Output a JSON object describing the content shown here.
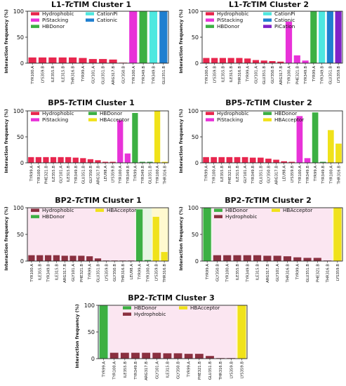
{
  "colors": {
    "Hydrophobic": "#e8264e",
    "PiStacking": "#e832d8",
    "HBDonor": "#3cb043",
    "CationPi": "#4ee8e0",
    "Cationic": "#1f7fd0",
    "PiCation": "#7f22c8",
    "HBAcceptor": "#f0e21a",
    "HydrophobicBP2": "#8a3040"
  },
  "chart_data": [
    {
      "type": "bar",
      "title": "L1-TcTIM  Cluster 1",
      "title_prefix": "L1-",
      "title_italic": "Tc",
      "title_suffix": "TIM  Cluster 1",
      "ylabel": "Interaction frequency (%)",
      "ylim": [
        0,
        100
      ],
      "yticks": [
        "0",
        "50",
        "100"
      ],
      "legend": [
        "Hydrophobic",
        "PiStacking",
        "HBDonor",
        "CationPi",
        "Cationic"
      ],
      "categories": [
        "TYR100.A",
        "LYS359.B",
        "ILE355.B",
        "ILE315.B",
        "THR316.B",
        "TYR99.A",
        "GLY101.A",
        "GLU351.B",
        "ARG317.B",
        "GLY350.B",
        "TYR100.A",
        "TYR349.B",
        "TYR349.B",
        "GLU351.B"
      ],
      "values": [
        11,
        11,
        11,
        11,
        11,
        10,
        8,
        8,
        7,
        1,
        100,
        100,
        100,
        100
      ],
      "bar_types": [
        "Hydrophobic",
        "Hydrophobic",
        "Hydrophobic",
        "Hydrophobic",
        "Hydrophobic",
        "Hydrophobic",
        "Hydrophobic",
        "Hydrophobic",
        "Hydrophobic",
        "Hydrophobic",
        "PiStacking",
        "HBDonor",
        "CationPi",
        "Cationic"
      ]
    },
    {
      "type": "bar",
      "title": "L1-TcTIM  Cluster 2",
      "title_prefix": "L1-",
      "title_italic": "Tc",
      "title_suffix": "TIM  Cluster 2",
      "ylabel": "Interaction frequency (%)",
      "ylim": [
        0,
        100
      ],
      "yticks": [
        "0",
        "50",
        "100"
      ],
      "legend": [
        "Hydrophobic",
        "PiStacking",
        "HBDonor",
        "CationPi",
        "Cationic",
        "PiCation"
      ],
      "categories": [
        "TYR100.A",
        "LYS359.B",
        "ILE355.B",
        "ILE315.B",
        "THR316.B",
        "TYR99.A",
        "GLY101.A",
        "GLU351.B",
        "GLY350.B",
        "ARG317.B",
        "TYR100.A",
        "PHE321.B",
        "TYR349.B",
        "TYR99.A",
        "TYR349.B",
        "GLU351.B",
        "LYS359.B"
      ],
      "values": [
        10,
        10,
        10,
        10,
        10,
        9,
        6,
        5,
        4,
        3,
        80,
        15,
        5,
        100,
        100,
        100,
        100
      ],
      "bar_types": [
        "Hydrophobic",
        "Hydrophobic",
        "Hydrophobic",
        "Hydrophobic",
        "Hydrophobic",
        "Hydrophobic",
        "Hydrophobic",
        "Hydrophobic",
        "Hydrophobic",
        "Hydrophobic",
        "PiStacking",
        "PiStacking",
        "PiStacking",
        "HBDonor",
        "CationPi",
        "Cationic",
        "PiCation"
      ]
    },
    {
      "type": "bar",
      "title": "BP5-TcTIM  Cluster 1",
      "title_prefix": "BP5-",
      "title_italic": "Tc",
      "title_suffix": "TIM  Cluster 1",
      "ylabel": "Interaction frequency (%)",
      "ylim": [
        0,
        100
      ],
      "yticks": [
        "0",
        "50",
        "100"
      ],
      "legend": [
        "Hydrophobic",
        "PiStacking",
        "HBDonor",
        "HBAcceptor"
      ],
      "categories": [
        "TYR99.A",
        "TYR100.A",
        "PHE321.B",
        "ILE355.B",
        "GLY101.A",
        "ILE315.B",
        "TYR349.B",
        "GLU351.B",
        "GLY350.B",
        "ARG317.B",
        "LEU98.A",
        "LYS359.B",
        "TYR100.A",
        "TYR349.B",
        "TYR99.A",
        "TYR349.B",
        "GLU351.B",
        "TYR100.A",
        "THR316.B"
      ],
      "values": [
        11,
        11,
        11,
        11,
        11,
        11,
        10,
        9,
        7,
        5,
        2,
        2,
        82,
        18,
        96,
        2,
        2,
        100,
        2
      ],
      "bar_types": [
        "Hydrophobic",
        "Hydrophobic",
        "Hydrophobic",
        "Hydrophobic",
        "Hydrophobic",
        "Hydrophobic",
        "Hydrophobic",
        "Hydrophobic",
        "Hydrophobic",
        "Hydrophobic",
        "Hydrophobic",
        "Hydrophobic",
        "PiStacking",
        "PiStacking",
        "HBDonor",
        "HBDonor",
        "HBDonor",
        "HBAcceptor",
        "HBAcceptor"
      ]
    },
    {
      "type": "bar",
      "title": "BP5-TcTIM  Cluster 2",
      "title_prefix": "BP5-",
      "title_italic": "Tc",
      "title_suffix": "TIM  Cluster 2",
      "ylabel": "Interaction frequency (%)",
      "ylim": [
        0,
        100
      ],
      "yticks": [
        "0",
        "50",
        "100"
      ],
      "legend": [
        "Hydrophobic",
        "PiStacking",
        "HBDonor",
        "HBAcceptor"
      ],
      "categories": [
        "TYR99.A",
        "TYR100.A",
        "ILE355.B",
        "PHE321.B",
        "ILE315.B",
        "GLY101.A",
        "TYR349.B",
        "GLU351.B",
        "GLY350.B",
        "ARG317.B",
        "LEU98.A",
        "LYS359.B",
        "TYR100.A",
        "TYR349.B",
        "TYR99.A",
        "TYR349.B",
        "TYR100.A",
        "THR316.B"
      ],
      "values": [
        11,
        11,
        11,
        11,
        11,
        11,
        10,
        10,
        8,
        6,
        3,
        2,
        90,
        9,
        97,
        2,
        63,
        37
      ],
      "bar_types": [
        "Hydrophobic",
        "Hydrophobic",
        "Hydrophobic",
        "Hydrophobic",
        "Hydrophobic",
        "Hydrophobic",
        "Hydrophobic",
        "Hydrophobic",
        "Hydrophobic",
        "Hydrophobic",
        "Hydrophobic",
        "Hydrophobic",
        "PiStacking",
        "PiStacking",
        "HBDonor",
        "HBDonor",
        "HBAcceptor",
        "HBAcceptor"
      ]
    },
    {
      "type": "bar",
      "title": "BP2-TcTIM  Cluster 1",
      "title_prefix": "BP2-",
      "title_italic": "Tc",
      "title_suffix": "TIM  Cluster 1",
      "ylabel": "Interaction frequency (%)",
      "ylim": [
        0,
        100
      ],
      "yticks": [
        "0",
        "50",
        "100"
      ],
      "legend": [
        "Hydrophobic",
        "HBDonor",
        "HBAcceptor"
      ],
      "legend_colors": [
        "HydrophobicBP2",
        "HBDonor",
        "HBAcceptor"
      ],
      "categories": [
        "TYR100.A",
        "ILE355.B",
        "TYR349.B",
        "ILE315.B",
        "ARG317.B",
        "GLY101.A",
        "PHE321.B",
        "TYR99.A",
        "GLU351.B",
        "LYS359.B",
        "GLY350.B",
        "THR316.B",
        "LEU98.A",
        "TYR99.A",
        "TYR100.A",
        "LYS359.B",
        "THR316.B"
      ],
      "values": [
        11,
        11,
        11,
        11,
        10,
        10,
        10,
        9,
        5,
        1,
        1,
        1,
        1,
        97,
        2,
        83,
        17
      ],
      "bar_types": [
        "HydrophobicBP2",
        "HydrophobicBP2",
        "HydrophobicBP2",
        "HydrophobicBP2",
        "HydrophobicBP2",
        "HydrophobicBP2",
        "HydrophobicBP2",
        "HydrophobicBP2",
        "HydrophobicBP2",
        "HydrophobicBP2",
        "HydrophobicBP2",
        "HydrophobicBP2",
        "HydrophobicBP2",
        "HBDonor",
        "HBDonor",
        "HBAcceptor",
        "HBAcceptor"
      ]
    },
    {
      "type": "bar",
      "title": "BP2-TcTIM  Cluster 2",
      "title_prefix": "BP2-",
      "title_italic": "Tc",
      "title_suffix": "TIM  Cluster 2",
      "ylabel": "Interaction frequency (%)",
      "ylim": [
        0,
        100
      ],
      "yticks": [
        "0",
        "50",
        "100"
      ],
      "legend": [
        "HBDonor",
        "Hydrophobic",
        "HBAcceptor"
      ],
      "legend_colors": [
        "HBDonor",
        "HydrophobicBP2",
        "HBAcceptor"
      ],
      "categories": [
        "TYR99.A",
        "GLY350.B",
        "TYR100.A",
        "ILE355.B",
        "TYR349.B",
        "ILE315.B",
        "ARG317.B",
        "GLY101.A",
        "THR316.B",
        "TYR99.A",
        "GLU351.B",
        "PHE321.B",
        "THR316.B",
        "LYS359.B"
      ],
      "values": [
        100,
        11,
        11,
        11,
        11,
        11,
        10,
        10,
        9,
        7,
        6,
        6,
        1,
        100
      ],
      "bar_types": [
        "HBDonor",
        "HydrophobicBP2",
        "HydrophobicBP2",
        "HydrophobicBP2",
        "HydrophobicBP2",
        "HydrophobicBP2",
        "HydrophobicBP2",
        "HydrophobicBP2",
        "HydrophobicBP2",
        "HydrophobicBP2",
        "HydrophobicBP2",
        "HydrophobicBP2",
        "HydrophobicBP2",
        "HBAcceptor"
      ]
    },
    {
      "type": "bar",
      "title": "BP2-TcTIM  Cluster 3",
      "title_prefix": "BP2-",
      "title_italic": "Tc",
      "title_suffix": "TIM  Cluster 3",
      "ylabel": "Interaction frequency (%)",
      "ylim": [
        0,
        100
      ],
      "yticks": [
        "0",
        "50",
        "100"
      ],
      "legend": [
        "HBDonor",
        "Hydrophobic",
        "HBAcceptor"
      ],
      "legend_colors": [
        "HBDonor",
        "HydrophobicBP2",
        "HBAcceptor"
      ],
      "categories": [
        "TYR99.A",
        "TYR100.A",
        "ILE355.B",
        "TYR349.B",
        "ARG317.B",
        "GLY101.A",
        "ILE315.B",
        "GLY350.B",
        "TYR99.A",
        "PHE321.B",
        "GLU351.B",
        "THR316.B",
        "LYS359.B",
        "LYS359.B"
      ],
      "values": [
        100,
        11,
        11,
        11,
        11,
        11,
        10,
        10,
        9,
        9,
        5,
        1,
        1,
        100
      ],
      "bar_types": [
        "HBDonor",
        "HydrophobicBP2",
        "HydrophobicBP2",
        "HydrophobicBP2",
        "HydrophobicBP2",
        "HydrophobicBP2",
        "HydrophobicBP2",
        "HydrophobicBP2",
        "HydrophobicBP2",
        "HydrophobicBP2",
        "HydrophobicBP2",
        "HydrophobicBP2",
        "HydrophobicBP2",
        "HBAcceptor"
      ]
    }
  ]
}
